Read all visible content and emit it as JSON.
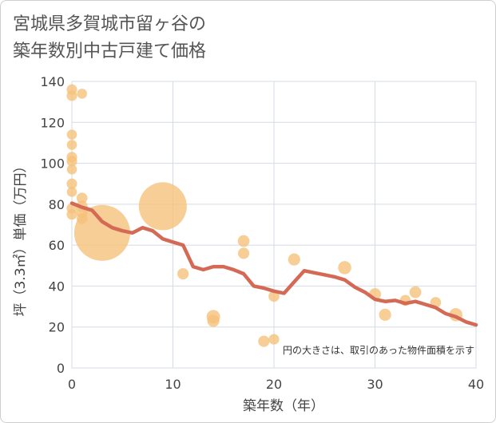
{
  "chart_data": {
    "type": "scatter",
    "title": "宮城県多賀城市留ヶ谷の\n築年数別中古戸建て価格",
    "xlabel": "築年数（年）",
    "ylabel": "坪（3.3㎡）単価（万円）",
    "xlim": [
      0,
      40
    ],
    "ylim": [
      0,
      140
    ],
    "xticks": [
      0,
      10,
      20,
      30,
      40
    ],
    "yticks": [
      0,
      20,
      40,
      60,
      80,
      100,
      120,
      140
    ],
    "grid": true,
    "note": "円の大きさは、取引のあった物件面積を示す",
    "colors": {
      "bubble": "#f5c27a",
      "line": "#d46a55"
    },
    "bubbles": [
      {
        "x": 0,
        "y": 136,
        "size": 120
      },
      {
        "x": 0,
        "y": 133,
        "size": 120
      },
      {
        "x": 1,
        "y": 134,
        "size": 110
      },
      {
        "x": 0,
        "y": 114,
        "size": 110
      },
      {
        "x": 0,
        "y": 109,
        "size": 110
      },
      {
        "x": 0,
        "y": 103,
        "size": 120
      },
      {
        "x": 0,
        "y": 101,
        "size": 120
      },
      {
        "x": 0,
        "y": 97,
        "size": 110
      },
      {
        "x": 0,
        "y": 90,
        "size": 120
      },
      {
        "x": 0,
        "y": 86,
        "size": 110
      },
      {
        "x": 1,
        "y": 83,
        "size": 130
      },
      {
        "x": 0,
        "y": 78,
        "size": 120
      },
      {
        "x": 0,
        "y": 75,
        "size": 120
      },
      {
        "x": 1,
        "y": 79,
        "size": 140
      },
      {
        "x": 1,
        "y": 76,
        "size": 140
      },
      {
        "x": 1,
        "y": 73,
        "size": 130
      },
      {
        "x": 3,
        "y": 66,
        "size": 3400
      },
      {
        "x": 9,
        "y": 79,
        "size": 2500
      },
      {
        "x": 11,
        "y": 46,
        "size": 140
      },
      {
        "x": 14,
        "y": 25,
        "size": 200
      },
      {
        "x": 14,
        "y": 23,
        "size": 160
      },
      {
        "x": 17,
        "y": 62,
        "size": 150
      },
      {
        "x": 17,
        "y": 56,
        "size": 140
      },
      {
        "x": 19,
        "y": 13,
        "size": 140
      },
      {
        "x": 20,
        "y": 14,
        "size": 120
      },
      {
        "x": 20,
        "y": 35,
        "size": 130
      },
      {
        "x": 22,
        "y": 53,
        "size": 160
      },
      {
        "x": 27,
        "y": 49,
        "size": 190
      },
      {
        "x": 30,
        "y": 36,
        "size": 160
      },
      {
        "x": 31,
        "y": 26,
        "size": 160
      },
      {
        "x": 33,
        "y": 33,
        "size": 130
      },
      {
        "x": 34,
        "y": 37,
        "size": 150
      },
      {
        "x": 36,
        "y": 32,
        "size": 130
      },
      {
        "x": 38,
        "y": 26,
        "size": 190
      }
    ],
    "trend": [
      {
        "x": 0,
        "y": 80.5
      },
      {
        "x": 1,
        "y": 78.5
      },
      {
        "x": 2,
        "y": 77
      },
      {
        "x": 3,
        "y": 71.5
      },
      {
        "x": 4,
        "y": 68.5
      },
      {
        "x": 5,
        "y": 67
      },
      {
        "x": 6,
        "y": 66
      },
      {
        "x": 7,
        "y": 68.5
      },
      {
        "x": 8,
        "y": 67
      },
      {
        "x": 9,
        "y": 63
      },
      {
        "x": 10,
        "y": 61.5
      },
      {
        "x": 11,
        "y": 60
      },
      {
        "x": 12,
        "y": 49.5
      },
      {
        "x": 13,
        "y": 48
      },
      {
        "x": 14,
        "y": 49.5
      },
      {
        "x": 15,
        "y": 49.5
      },
      {
        "x": 16,
        "y": 48
      },
      {
        "x": 17,
        "y": 46
      },
      {
        "x": 18,
        "y": 40
      },
      {
        "x": 19,
        "y": 39
      },
      {
        "x": 20,
        "y": 37.5
      },
      {
        "x": 21,
        "y": 36.5
      },
      {
        "x": 22,
        "y": 42
      },
      {
        "x": 23,
        "y": 47.5
      },
      {
        "x": 24,
        "y": 46.5
      },
      {
        "x": 25,
        "y": 45.5
      },
      {
        "x": 26,
        "y": 44.5
      },
      {
        "x": 27,
        "y": 43
      },
      {
        "x": 28,
        "y": 39.5
      },
      {
        "x": 29,
        "y": 37
      },
      {
        "x": 30,
        "y": 33.5
      },
      {
        "x": 31,
        "y": 32.5
      },
      {
        "x": 32,
        "y": 33
      },
      {
        "x": 33,
        "y": 31.5
      },
      {
        "x": 34,
        "y": 32.5
      },
      {
        "x": 35,
        "y": 31
      },
      {
        "x": 36,
        "y": 29.5
      },
      {
        "x": 37,
        "y": 26.5
      },
      {
        "x": 38,
        "y": 25
      },
      {
        "x": 39,
        "y": 22.5
      },
      {
        "x": 40,
        "y": 21
      }
    ]
  }
}
